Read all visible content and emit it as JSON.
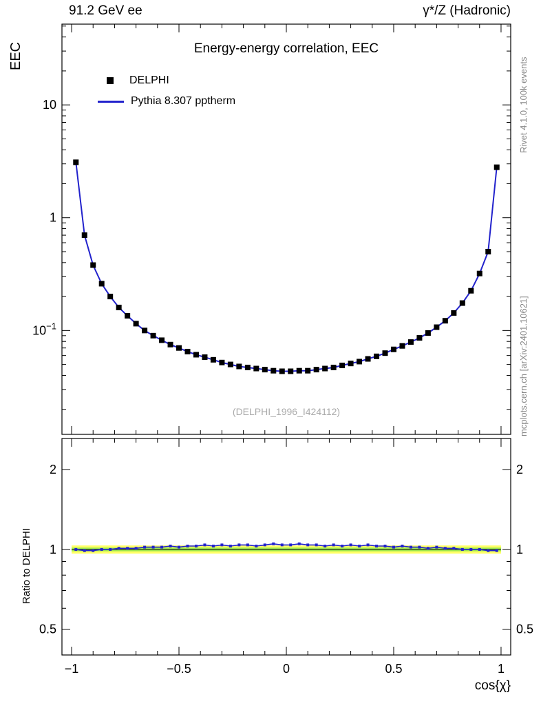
{
  "header": {
    "left": "91.2 GeV ee",
    "right": "γ*/Z (Hadronic)"
  },
  "side_notes": {
    "top": "Rivet 4.1.0, 100k events",
    "bottom": "mcplots.cern.ch [arXiv:2401.10621]"
  },
  "watermark": "(DELPHI_1996_I424112)",
  "chart_data": {
    "type": "line",
    "title": "Energy-energy correlation, EEC",
    "xlabel": "cos{χ}",
    "ylabel": "EEC",
    "ratio_ylabel": "Ratio to DELPHI",
    "x_range": [
      -1.045,
      1.045
    ],
    "y_range": [
      0.012,
      52
    ],
    "y_scale": "log",
    "ratio_range": [
      0.4,
      2.62
    ],
    "x_major_ticks": [
      -1,
      -0.5,
      0,
      0.5,
      1
    ],
    "x_tick_labels": [
      {
        "value": -1,
        "label": "−1"
      },
      {
        "value": -0.5,
        "label": "−0.5"
      },
      {
        "value": 0,
        "label": "0"
      },
      {
        "value": 0.5,
        "label": "0.5"
      },
      {
        "value": 1,
        "label": "1"
      }
    ],
    "y_tick_labels": [
      {
        "value": 0.1,
        "base": "10",
        "exp": "−1"
      },
      {
        "value": 1,
        "base": "1",
        "exp": ""
      },
      {
        "value": 10,
        "base": "10",
        "exp": ""
      }
    ],
    "ratio_tick_labels": [
      {
        "value": 0.5,
        "label": "0.5"
      },
      {
        "value": 1,
        "label": "1"
      },
      {
        "value": 2,
        "label": "2"
      }
    ],
    "legend": [
      {
        "label": "DELPHI",
        "marker": "square",
        "color": "#000000"
      },
      {
        "label": "Pythia 8.307 pptherm",
        "marker": "line",
        "color": "#2222cc"
      }
    ],
    "x": [
      -0.98,
      -0.94,
      -0.9,
      -0.86,
      -0.82,
      -0.78,
      -0.74,
      -0.7,
      -0.66,
      -0.62,
      -0.58,
      -0.54,
      -0.5,
      -0.46,
      -0.42,
      -0.38,
      -0.34,
      -0.3,
      -0.26,
      -0.22,
      -0.18,
      -0.14,
      -0.1,
      -0.06,
      -0.02,
      0.02,
      0.06,
      0.1,
      0.14,
      0.18,
      0.22,
      0.26,
      0.3,
      0.34,
      0.38,
      0.42,
      0.46,
      0.5,
      0.54,
      0.58,
      0.62,
      0.66,
      0.7,
      0.74,
      0.78,
      0.82,
      0.86,
      0.9,
      0.94,
      0.98
    ],
    "series": [
      {
        "name": "DELPHI",
        "style": "markers",
        "color": "#000000",
        "values": [
          3.1,
          0.7,
          0.38,
          0.26,
          0.2,
          0.16,
          0.135,
          0.115,
          0.1,
          0.09,
          0.082,
          0.075,
          0.07,
          0.065,
          0.061,
          0.058,
          0.055,
          0.052,
          0.05,
          0.048,
          0.047,
          0.046,
          0.045,
          0.044,
          0.0435,
          0.0435,
          0.044,
          0.044,
          0.045,
          0.046,
          0.047,
          0.049,
          0.051,
          0.053,
          0.056,
          0.059,
          0.063,
          0.068,
          0.073,
          0.079,
          0.086,
          0.095,
          0.107,
          0.122,
          0.143,
          0.175,
          0.225,
          0.32,
          0.5,
          2.8
        ]
      },
      {
        "name": "Pythia 8.307 pptherm",
        "style": "line",
        "color": "#2222cc",
        "values": [
          3.1,
          0.7,
          0.38,
          0.26,
          0.2,
          0.16,
          0.135,
          0.115,
          0.1,
          0.09,
          0.082,
          0.075,
          0.07,
          0.065,
          0.061,
          0.058,
          0.055,
          0.052,
          0.05,
          0.048,
          0.047,
          0.046,
          0.045,
          0.044,
          0.0435,
          0.0435,
          0.044,
          0.044,
          0.045,
          0.046,
          0.047,
          0.049,
          0.051,
          0.053,
          0.056,
          0.059,
          0.063,
          0.068,
          0.073,
          0.079,
          0.086,
          0.095,
          0.107,
          0.122,
          0.143,
          0.175,
          0.225,
          0.32,
          0.5,
          2.8
        ]
      }
    ],
    "ratio": {
      "reference": 1,
      "line_color": "#2222cc",
      "band_outer": 0.035,
      "band_inner": 0.016,
      "band_outer_color": "#ffff66",
      "band_inner_color": "#9fe84f",
      "values": [
        1.0,
        0.99,
        0.99,
        1.0,
        1.0,
        1.01,
        1.01,
        1.01,
        1.02,
        1.02,
        1.02,
        1.03,
        1.02,
        1.03,
        1.03,
        1.04,
        1.03,
        1.04,
        1.03,
        1.04,
        1.04,
        1.03,
        1.04,
        1.05,
        1.04,
        1.04,
        1.05,
        1.04,
        1.04,
        1.03,
        1.04,
        1.03,
        1.04,
        1.03,
        1.04,
        1.03,
        1.03,
        1.02,
        1.03,
        1.02,
        1.02,
        1.01,
        1.02,
        1.01,
        1.01,
        1.0,
        1.0,
        1.0,
        0.99,
        0.99
      ]
    }
  }
}
